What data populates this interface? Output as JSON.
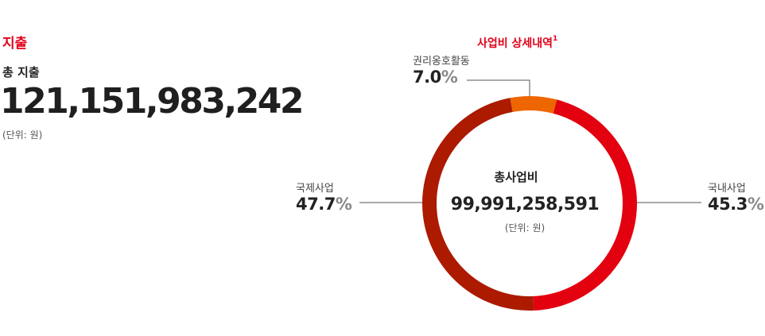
{
  "expenditure": {
    "title": "지출",
    "total_label": "총 지출",
    "total_amount": "121,151,983,242",
    "unit": "(단위: 원)"
  },
  "detail": {
    "title": "사업비 상세내역",
    "footnote_mark": "1"
  },
  "center": {
    "title": "총사업비",
    "amount": "99,991,258,591",
    "unit": "(단위: 원)"
  },
  "chart_data": {
    "type": "pie",
    "donut": true,
    "title": "사업비 상세내역",
    "slices": [
      {
        "name": "국내사업",
        "value_text": "45.3",
        "value": 45.3,
        "color": "#e3000f"
      },
      {
        "name": "국제사업",
        "value_text": "47.7",
        "value": 47.7,
        "color": "#ac1a00"
      },
      {
        "name": "권리옹호활동",
        "value_text": "7.0",
        "value": 7.0,
        "color": "#ee6600"
      }
    ],
    "percent_sign": "%"
  }
}
